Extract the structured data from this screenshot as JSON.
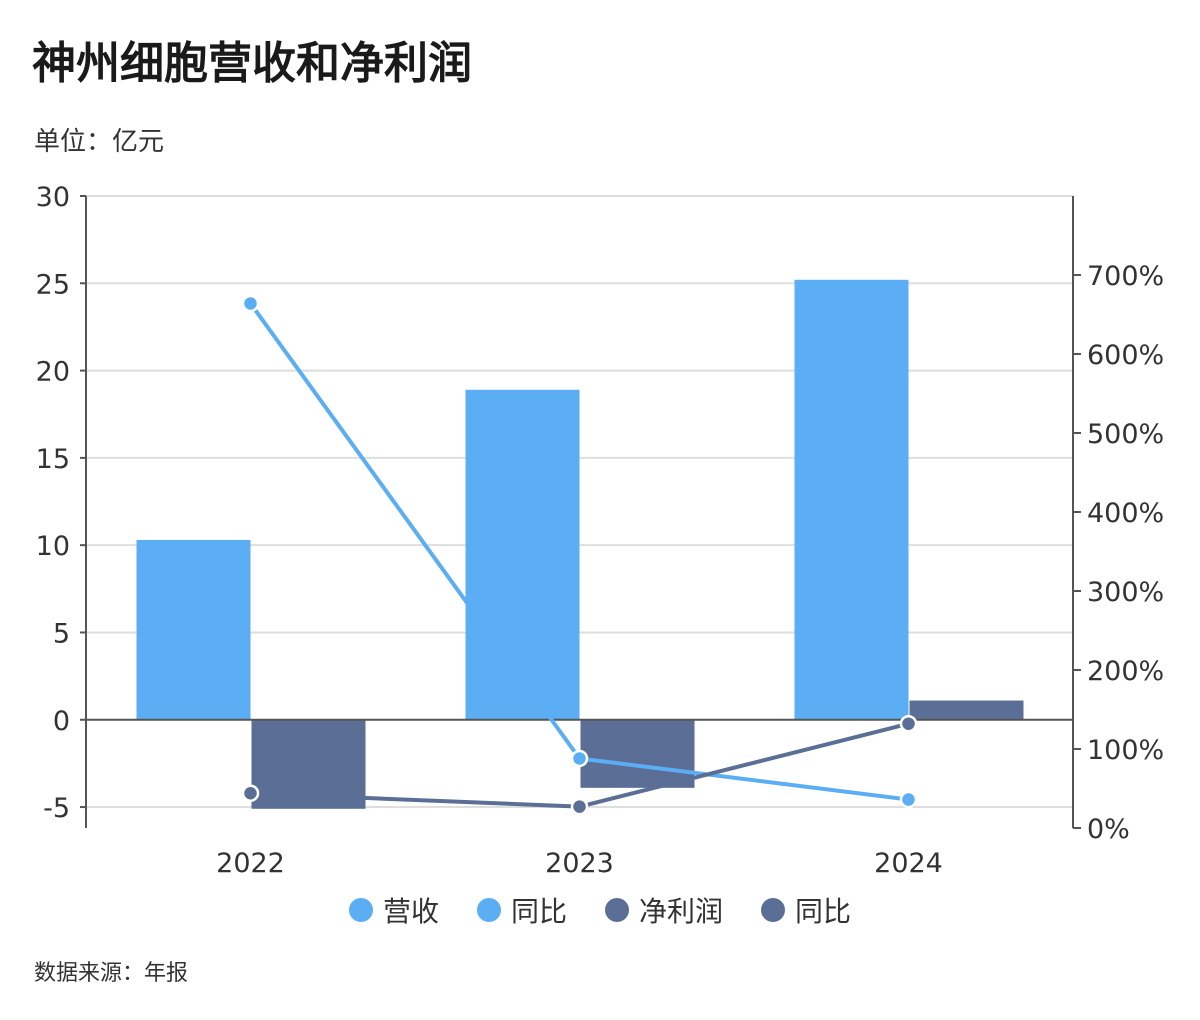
{
  "title": "神州细胞营收和净利润",
  "unit_label": "单位：亿元",
  "source_label": "数据来源：年报",
  "colors": {
    "revenue": "#5baef4",
    "profit": "#5b6f96",
    "grid": "#dedede",
    "axis": "#555555"
  },
  "chart_data": {
    "type": "bar",
    "categories": [
      "2022",
      "2023",
      "2024"
    ],
    "y_left": {
      "min": -6.2,
      "max": 30,
      "ticks": [
        -5,
        0,
        5,
        10,
        15,
        20,
        25,
        30
      ]
    },
    "y_right": {
      "min": 0,
      "max": 800,
      "ticks": [
        0,
        100,
        200,
        300,
        400,
        500,
        600,
        700
      ],
      "tick_labels": [
        "0%",
        "100%",
        "200%",
        "300%",
        "400%",
        "500%",
        "600%",
        "700%"
      ]
    },
    "grid": true,
    "legend_position": "bottom",
    "series": [
      {
        "name": "营收",
        "kind": "bar",
        "axis": "left",
        "color": "#5baef4",
        "values": [
          10.3,
          18.9,
          25.2
        ]
      },
      {
        "name": "净利润",
        "kind": "bar",
        "axis": "left",
        "color": "#5b6f96",
        "values": [
          -5.1,
          -3.9,
          1.1
        ]
      },
      {
        "name": "同比",
        "kind": "line",
        "axis": "right",
        "color": "#5baef4",
        "values": [
          664,
          88,
          36
        ]
      },
      {
        "name": "同比",
        "kind": "line",
        "axis": "right",
        "color": "#5b6f96",
        "values": [
          44,
          27,
          132
        ]
      }
    ]
  },
  "legend": [
    {
      "label": "营收",
      "color": "#5baef4"
    },
    {
      "label": "同比",
      "color": "#5baef4"
    },
    {
      "label": "净利润",
      "color": "#5b6f96"
    },
    {
      "label": "同比",
      "color": "#5b6f96"
    }
  ]
}
